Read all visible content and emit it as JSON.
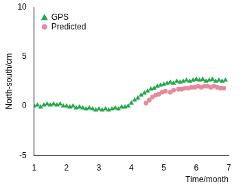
{
  "chart_data": {
    "type": "scatter",
    "x_label": "Time/month",
    "y_label": "North-south/cm",
    "xlim": [
      1,
      7
    ],
    "xticks": [
      1,
      2,
      3,
      4,
      5,
      6,
      7
    ],
    "ylim": [
      -5,
      10
    ],
    "yticks": [
      -5,
      0,
      5,
      10
    ],
    "grid": false,
    "legend": "upper left",
    "series": [
      {
        "name": "GPS",
        "color": "#22a84a",
        "marker": "triangle",
        "x": [
          1.0,
          1.1,
          1.2,
          1.3,
          1.4,
          1.5,
          1.6,
          1.7,
          1.8,
          1.9,
          2.0,
          2.1,
          2.2,
          2.3,
          2.4,
          2.5,
          2.6,
          2.7,
          2.8,
          2.9,
          3.0,
          3.1,
          3.2,
          3.3,
          3.4,
          3.5,
          3.6,
          3.7,
          3.8,
          3.9,
          4.0,
          4.1,
          4.2,
          4.3,
          4.4,
          4.5,
          4.6,
          4.7,
          4.8,
          4.9,
          5.0,
          5.1,
          5.2,
          5.3,
          5.4,
          5.5,
          5.6,
          5.7,
          5.8,
          5.9,
          6.0,
          6.1,
          6.2,
          6.3,
          6.4,
          6.5,
          6.6,
          6.7,
          6.8,
          6.9
        ],
        "values": [
          0.0,
          0.1,
          -0.1,
          0.1,
          0.2,
          0.1,
          0.2,
          0.1,
          0.2,
          0.0,
          0.0,
          -0.1,
          0.0,
          -0.2,
          -0.1,
          -0.2,
          -0.3,
          -0.2,
          -0.3,
          -0.4,
          -0.3,
          -0.4,
          -0.3,
          -0.4,
          -0.3,
          -0.2,
          -0.3,
          -0.1,
          -0.1,
          0.0,
          0.3,
          0.6,
          0.8,
          1.1,
          1.3,
          1.5,
          1.7,
          1.8,
          2.0,
          2.1,
          2.2,
          2.3,
          2.4,
          2.3,
          2.5,
          2.4,
          2.5,
          2.6,
          2.5,
          2.6,
          2.7,
          2.6,
          2.7,
          2.5,
          2.6,
          2.7,
          2.5,
          2.6,
          2.5,
          2.6
        ]
      },
      {
        "name": "Predicted",
        "color": "#e8899e",
        "marker": "circle",
        "x": [
          4.45,
          4.55,
          4.65,
          4.75,
          4.85,
          4.95,
          5.05,
          5.2,
          5.3,
          5.45,
          5.55,
          5.65,
          5.75,
          5.85,
          5.95,
          6.05,
          6.15,
          6.25,
          6.35,
          6.45,
          6.55,
          6.65,
          6.75,
          6.85
        ],
        "values": [
          0.3,
          0.6,
          0.9,
          1.1,
          1.2,
          1.4,
          1.5,
          1.4,
          1.6,
          1.7,
          1.7,
          1.8,
          1.8,
          1.9,
          1.9,
          2.0,
          1.9,
          2.0,
          2.0,
          1.9,
          2.0,
          1.9,
          1.8,
          1.8
        ]
      }
    ]
  }
}
